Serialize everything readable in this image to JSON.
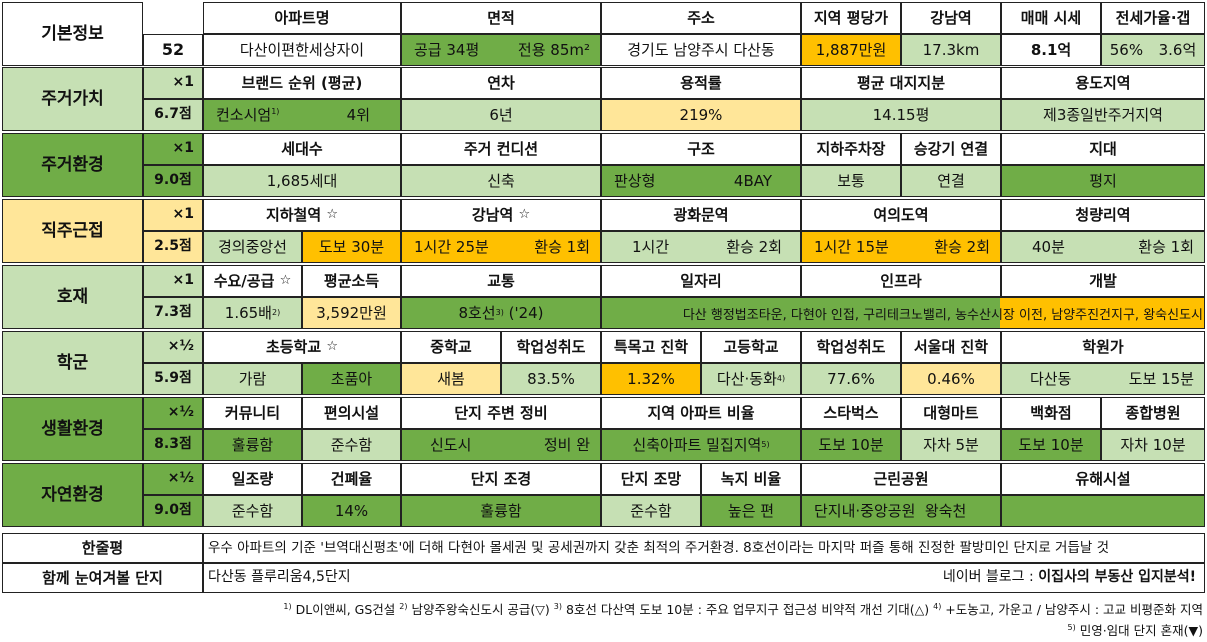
{
  "basic": {
    "section_label": "기본정보",
    "number": "52",
    "headers": [
      "아파트명",
      "면적",
      "주소",
      "지역 평당가",
      "강남역",
      "매매 시세",
      "전세가율·갭"
    ],
    "apartment_name": "다산이편한세상자이",
    "area_supply": "공급 34평",
    "area_exclusive": "전용 85m²",
    "address": "경기도 남양주시 다산동",
    "regional_price_per_pyeong": "1,887만원",
    "gangnam_distance": "17.3km",
    "sale_price": "8.1억",
    "jeonse_ratio": "56%",
    "jeonse_gap": "3.6억"
  },
  "sections": [
    {
      "label": "주거가치",
      "multiplier": "×1",
      "score": "6.7점"
    },
    {
      "label": "주거환경",
      "multiplier": "×1",
      "score": "9.0점"
    },
    {
      "label": "직주근접",
      "multiplier": "×1",
      "score": "2.5점"
    },
    {
      "label": "호재",
      "multiplier": "×1",
      "score": "7.3점"
    },
    {
      "label": "학군",
      "multiplier": "×½",
      "score": "5.9점"
    },
    {
      "label": "생활환경",
      "multiplier": "×½",
      "score": "8.3점"
    },
    {
      "label": "자연환경",
      "multiplier": "×½",
      "score": "9.0점"
    }
  ],
  "residential_value": {
    "headers": [
      "브랜드 순위 (평균)",
      "연차",
      "용적률",
      "평균 대지지분",
      "용도지역"
    ],
    "brand": "컨소시엄",
    "brand_note": "1)",
    "brand_rank": "4위",
    "age": "6년",
    "far": "219%",
    "land_share": "14.15평",
    "zoning": "제3종일반주거지역"
  },
  "residential_env": {
    "headers": [
      "세대수",
      "주거 컨디션",
      "구조",
      "지하주차장",
      "승강기 연결",
      "지대"
    ],
    "households": "1,685세대",
    "condition": "신축",
    "structure_type": "판상형",
    "structure_bay": "4BAY",
    "parking": "보통",
    "elevator": "연결",
    "terrain": "평지"
  },
  "commute": {
    "headers": [
      "지하철역",
      "강남역",
      "광화문역",
      "여의도역",
      "청량리역"
    ],
    "star": "☆",
    "subway_line": "경의중앙선",
    "subway_walk": "도보 30분",
    "gangnam_time": "1시간 25분",
    "gangnam_transfer": "환승 1회",
    "gwanghwamun_time": "1시간",
    "gwanghwamun_transfer": "환승 2회",
    "yeouido_time": "1시간 15분",
    "yeouido_transfer": "환승 2회",
    "cheongnyangni_time": "40분",
    "cheongnyangni_transfer": "환승 1회"
  },
  "development": {
    "headers": [
      "수요/공급",
      "평균소득",
      "교통",
      "일자리",
      "인프라",
      "개발"
    ],
    "star": "☆",
    "demand_supply": "1.65배",
    "demand_supply_note": "2)",
    "avg_income": "3,592만원",
    "transport": "8호선",
    "transport_note": "3)",
    "transport_year": "('24)",
    "combined_text": "다산 행정법조타운, 다현아 인접, 구리테크노밸리, 농수산시장 이전, 남양주진건지구, 왕숙신도시"
  },
  "school": {
    "headers": [
      "초등학교",
      "중학교",
      "학업성취도",
      "특목고 진학",
      "고등학교",
      "학업성취도",
      "서울대 진학",
      "학원가"
    ],
    "star": "☆",
    "elementary_1": "가람",
    "elementary_2": "초품아",
    "middle": "새봄",
    "middle_achievement": "83.5%",
    "special_high_rate": "1.32%",
    "high": "다산·동화",
    "high_note": "4)",
    "high_achievement": "77.6%",
    "snu_rate": "0.46%",
    "academy_area": "다산동",
    "academy_walk": "도보 15분"
  },
  "living_env": {
    "headers": [
      "커뮤니티",
      "편의시설",
      "단지 주변 정비",
      "지역 아파트 비율",
      "스타벅스",
      "대형마트",
      "백화점",
      "종합병원"
    ],
    "community": "훌륭함",
    "convenience": "준수함",
    "surroundings": "신도시",
    "redevelopment": "정비 완",
    "apt_ratio": "신축아파트 밀집지역",
    "apt_ratio_note": "5)",
    "starbucks": "도보 10분",
    "mart": "자차 5분",
    "department_store": "도보 10분",
    "hospital": "자차 10분"
  },
  "nature_env": {
    "headers": [
      "일조량",
      "건폐율",
      "단지 조경",
      "단지 조망",
      "녹지 비율",
      "근린공원",
      "유해시설"
    ],
    "sunlight": "준수함",
    "coverage": "14%",
    "landscape": "훌륭함",
    "view": "준수함",
    "green_ratio": "높은 편",
    "park": "단지내·중앙공원",
    "park_2": "왕숙천",
    "hazards": ""
  },
  "summary": {
    "label": "한줄평",
    "text": "우수 아파트의 기준 '브역대신평초'에 더해 다현아 몰세권 및 공세권까지 갖춘 최적의 주거환경. 8호선이라는 마지막 퍼즐 통해 진정한 팔방미인 단지로 거듭날 것"
  },
  "together": {
    "label": "함께 눈여겨볼 단지",
    "text": "다산동 플루리움4,5단지",
    "blog_prefix": "네이버 블로그 : ",
    "blog_name": "이집사의 부동산 입지분석!"
  },
  "footnotes": {
    "line1": [
      {
        "mark": "1)",
        "text": " DL이앤씨, GS건설 "
      },
      {
        "mark": "2)",
        "text": " 남양주왕숙신도시 공급(▽) "
      },
      {
        "mark": "3)",
        "text": " 8호선 다산역 도보 10분 : 주요 업무지구 접근성 비약적 개선 기대(△) "
      },
      {
        "mark": "4)",
        "text": " +도농고, 가운고 / 남양주시 : 고교 비평준화 지역"
      }
    ],
    "line2": [
      {
        "mark": "5)",
        "text": " 민영·임대 단지 혼재(▼)"
      }
    ]
  }
}
